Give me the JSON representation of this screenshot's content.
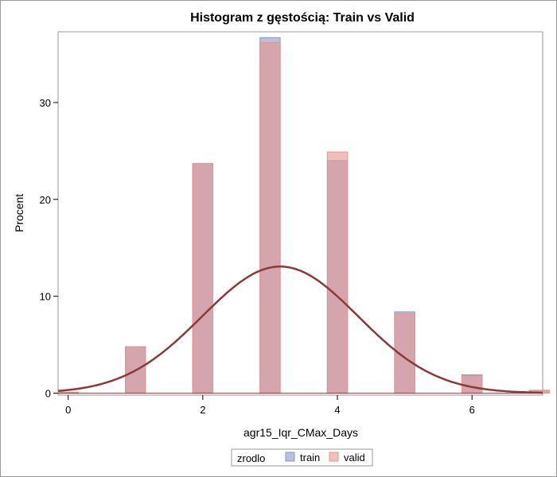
{
  "chart_data": {
    "type": "bar",
    "title": "Histogram z gęstością: Train vs Valid",
    "xlabel": "agr15_Iqr_CMax_Days",
    "ylabel": "Procent",
    "xlim": [
      -0.15,
      7.05
    ],
    "ylim": [
      -0.2,
      37.3
    ],
    "x_ticks": [
      0,
      2,
      4,
      6
    ],
    "y_ticks": [
      0,
      10,
      20,
      30
    ],
    "bin_width": 0.3,
    "categories": [
      0,
      1,
      2,
      3,
      4,
      5,
      6,
      7
    ],
    "series": [
      {
        "name": "train",
        "color": "#8a95c8",
        "values": [
          0.1,
          4.8,
          23.7,
          36.7,
          24.0,
          8.4,
          1.9,
          0.3
        ]
      },
      {
        "name": "valid",
        "color": "#e8948c",
        "values": [
          0.1,
          4.8,
          23.7,
          36.2,
          24.9,
          8.2,
          1.8,
          0.3
        ]
      }
    ],
    "density_curve": {
      "type": "normal",
      "mean": 3.15,
      "sd": 1.16,
      "color": "#8b3a3a"
    },
    "legend": {
      "title": "zrodlo",
      "position": "bottom",
      "entries": [
        "train",
        "valid"
      ]
    },
    "grid": false
  }
}
